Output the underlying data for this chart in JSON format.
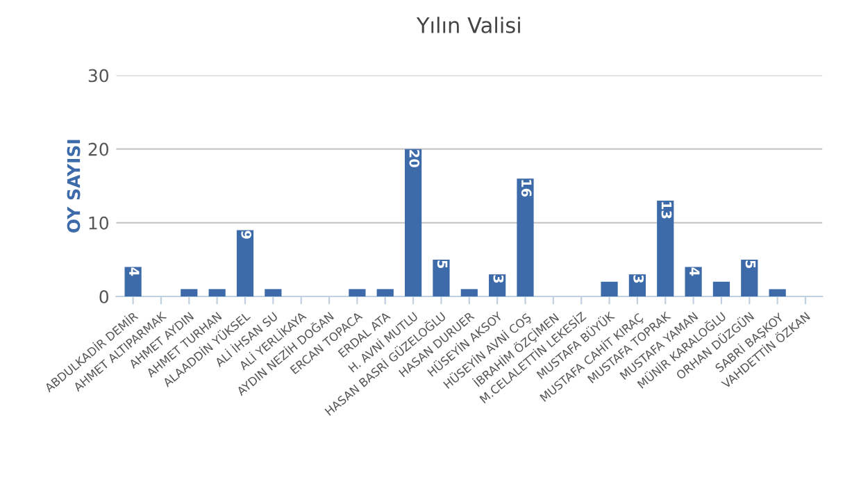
{
  "chart_data": {
    "type": "bar",
    "title": "Yılın Valisi",
    "ylabel": "OY SAYISI",
    "categories": [
      "ABDULKADİR DEMİR",
      "AHMET ALTIPARMAK",
      "AHMET AYDIN",
      "AHMET TURHAN",
      "ALAADDİN YÜKSEL",
      "ALİ İHSAN SU",
      "ALİ YERLİKAYA",
      "AYDIN NEZİH DOĞAN",
      "ERCAN TOPACA",
      "ERDAL ATA",
      "H. AVNİ MUTLU",
      "HASAN BASRİ GÜZELOĞLU",
      "HASAN DURUER",
      "HÜSEYİN AKSOY",
      "HÜSEYİN AVNİ COŞ",
      "İBRAHİM ÖZÇİMEN",
      "M.CELALETTİN LEKESİZ",
      "MUSTAFA BÜYÜK",
      "MUSTAFA CAHİT KIRAÇ",
      "MUSTAFA TOPRAK",
      "MUSTAFA YAMAN",
      "MÜNİR KARALOĞLU",
      "ORHAN DÜZGÜN",
      "SABRİ BAŞKOY",
      "VAHDETTİN ÖZKAN"
    ],
    "values": [
      4,
      0,
      1,
      1,
      9,
      1,
      0,
      0,
      1,
      1,
      20,
      5,
      1,
      3,
      16,
      0,
      0,
      2,
      3,
      13,
      4,
      2,
      5,
      1,
      0
    ],
    "value_labels": [
      "4",
      null,
      null,
      null,
      "9",
      null,
      null,
      null,
      null,
      null,
      "20",
      "5",
      null,
      "3",
      "16",
      null,
      null,
      null,
      "3",
      "13",
      "4",
      null,
      "5",
      null,
      null
    ],
    "color": "#3d6aa8",
    "ylim": [
      0,
      30
    ],
    "yticks": [
      0,
      10,
      20,
      30
    ],
    "grid": "y",
    "legend": false
  }
}
